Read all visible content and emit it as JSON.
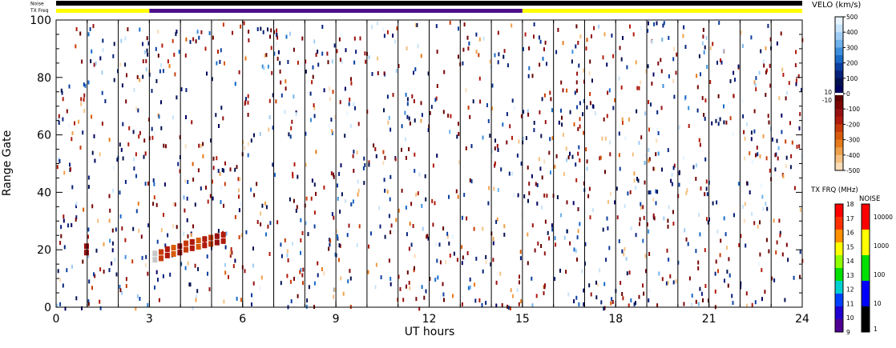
{
  "header": {
    "noise_label": "Noise",
    "txfreq_label": "TX Freq"
  },
  "chart_data": {
    "type": "scatter",
    "xlabel": "UT hours",
    "ylabel": "Range Gate",
    "xlim": [
      0,
      24
    ],
    "ylim": [
      0,
      100
    ],
    "xticks": [
      "0",
      "3",
      "6",
      "9",
      "12",
      "15",
      "18",
      "21",
      "24"
    ],
    "yticks": [
      "0",
      "20",
      "40",
      "60",
      "80",
      "100"
    ],
    "scan_boundaries_hours": [
      1,
      2,
      3,
      4,
      5,
      6,
      7,
      8,
      9,
      10,
      11,
      12,
      13,
      14,
      15,
      16,
      17,
      18,
      19,
      20,
      21,
      22,
      23,
      24
    ],
    "tx_freq_bar": [
      {
        "from": 0,
        "to": 3,
        "color": "#ffff00"
      },
      {
        "from": 3,
        "to": 15,
        "color": "#4b0f8c"
      },
      {
        "from": 15,
        "to": 24,
        "color": "#ffff00"
      }
    ],
    "noise_bar": [
      {
        "from": 0,
        "to": 24,
        "color": "#000000"
      }
    ],
    "echo_region": {
      "description_values": "slant band of low/negative velocity echoes",
      "points": [
        {
          "x": 0.9,
          "y": 20,
          "v": -150
        },
        {
          "x": 3.1,
          "y": 17.5,
          "v": 0
        },
        {
          "x": 3.3,
          "y": 18,
          "v": -250
        },
        {
          "x": 3.5,
          "y": 19,
          "v": -200
        },
        {
          "x": 3.7,
          "y": 19.5,
          "v": -300
        },
        {
          "x": 3.9,
          "y": 20,
          "v": -150
        },
        {
          "x": 4.1,
          "y": 21,
          "v": -250
        },
        {
          "x": 4.3,
          "y": 21.5,
          "v": -200
        },
        {
          "x": 4.5,
          "y": 22,
          "v": -300
        },
        {
          "x": 4.7,
          "y": 22.5,
          "v": -200
        },
        {
          "x": 4.9,
          "y": 23,
          "v": -250
        },
        {
          "x": 5.1,
          "y": 23.5,
          "v": -150
        },
        {
          "x": 5.3,
          "y": 24,
          "v": -200
        }
      ]
    },
    "velocity_colorbar": {
      "title": "VELO (km/s)",
      "ticks": [
        "500",
        "400",
        "300",
        "200",
        "100",
        "0",
        "-100",
        "-200",
        "-300",
        "-400",
        "-500"
      ],
      "side_labels": [
        "10",
        "-10"
      ],
      "colors": [
        "#e8f4ff",
        "#c8e4fa",
        "#9fcdf5",
        "#6fb2ec",
        "#3c8fdc",
        "#1a6ac8",
        "#0b3fa0",
        "#06217a",
        "#02104f",
        "#000060",
        "#600000",
        "#7a0606",
        "#961010",
        "#b01a0c",
        "#c73b08",
        "#d85a0a",
        "#e57a1a",
        "#eea04a",
        "#f4c080",
        "#f9ddb8"
      ]
    },
    "txfreq_colorbar": {
      "title": "TX FRQ (MHz)",
      "ticks": [
        "18",
        "17",
        "16",
        "15",
        "14",
        "13",
        "12",
        "11",
        "10",
        "9"
      ],
      "colors": [
        "#ff0000",
        "#ff3000",
        "#ff9000",
        "#ffff00",
        "#90ff00",
        "#00e000",
        "#00d0d0",
        "#0040ff",
        "#2000d0",
        "#500090"
      ]
    },
    "noise_colorbar": {
      "title": "NOISE",
      "ticks": [
        "10000",
        "1000",
        "100",
        "10",
        "1"
      ],
      "colors": [
        "#ff0000",
        "#ffff00",
        "#00e000",
        "#0000ff",
        "#000000"
      ]
    }
  }
}
